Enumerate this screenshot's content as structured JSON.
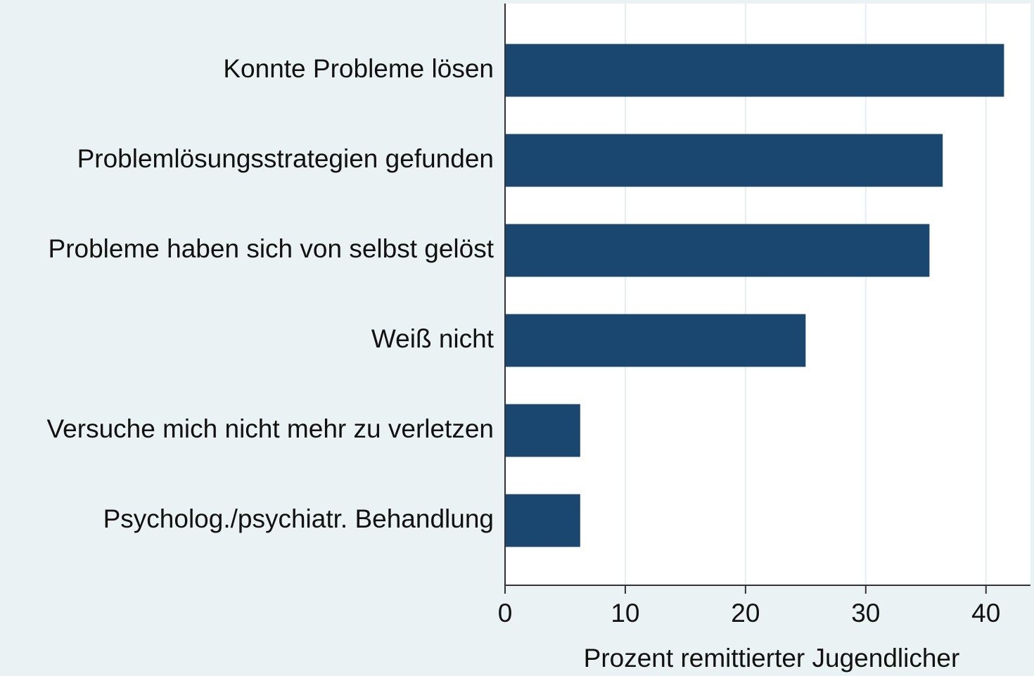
{
  "chart_data": {
    "type": "barh",
    "categories": [
      "Konnte Probleme lösen",
      "Problemlösungsstrategien gefunden",
      "Probleme haben sich von selbst gelöst",
      "Weiß nicht",
      "Versuche mich nicht mehr zu verletzen",
      "Psycholog./psychiatr. Behandlung"
    ],
    "values": [
      41.5,
      36.4,
      35.3,
      25.0,
      6.25,
      6.25
    ],
    "color": "#1a476f",
    "xlabel": "Prozent remittierter Jugendlicher",
    "xlim": [
      0,
      43.7
    ],
    "xticks": [
      0,
      10,
      20,
      30,
      40
    ],
    "grid": true
  }
}
